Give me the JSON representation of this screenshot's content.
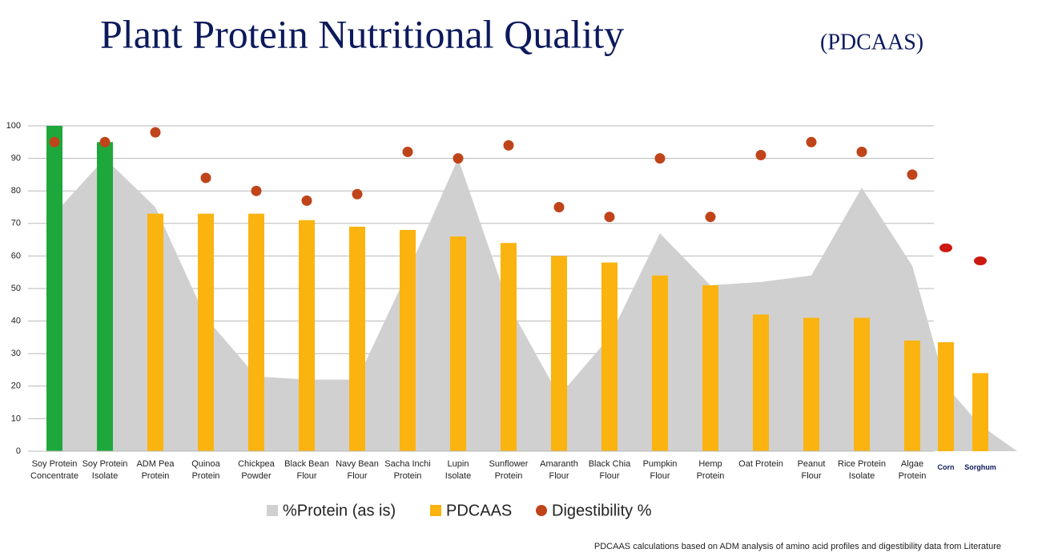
{
  "chart_data": {
    "type": "bar",
    "title": "Plant Protein Nutritional Quality",
    "subtitle": "(PDCAAS)",
    "footnote": "PDCAAS calculations based on ADM analysis of amino acid profiles and digestibility data from Literature",
    "categories": [
      "Soy Protein\nConcentrate",
      "Soy Protein\nIsolate",
      "ADM Pea\nProtein",
      "Quinoa\nProtein",
      "Chickpea\nPowder",
      "Black Bean\nFlour",
      "Navy Bean\nFlour",
      "Sacha Inchi\nProtein",
      "Lupin\nIsolate",
      "Sunflower\nProtein",
      "Amaranth\nFlour",
      "Black Chia\nFlour",
      "Pumpkin\nFlour",
      "Hemp\nProtein",
      "Oat Protein",
      "Peanut\nFlour",
      "Rice Protein\nIsolate",
      "Algae\nProtein",
      "Corn",
      "Sorghum"
    ],
    "series": [
      {
        "name": "%Protein (as is)",
        "kind": "area",
        "color": "#d0d0d0",
        "values": [
          73,
          90,
          75,
          41,
          23,
          22,
          22,
          55,
          90,
          45,
          17,
          35,
          67,
          51,
          52,
          54,
          81,
          57,
          20,
          8
        ]
      },
      {
        "name": "PDCAAS",
        "kind": "bar",
        "color": "#fbb30f",
        "colors": [
          "#1ea83c",
          "#1ea83c",
          "#fbb30f",
          "#fbb30f",
          "#fbb30f",
          "#fbb30f",
          "#fbb30f",
          "#fbb30f",
          "#fbb30f",
          "#fbb30f",
          "#fbb30f",
          "#fbb30f",
          "#fbb30f",
          "#fbb30f",
          "#fbb30f",
          "#fbb30f",
          "#fbb30f",
          "#fbb30f",
          "#fbb30f",
          "#fbb30f"
        ],
        "values": [
          100,
          95,
          73,
          73,
          73,
          71,
          69,
          68,
          66,
          64,
          60,
          58,
          54,
          51,
          42,
          41,
          41,
          34,
          33.5,
          24
        ]
      },
      {
        "name": "Digestibility %",
        "kind": "dot",
        "color": "#c0441a",
        "colors": [
          "#c0441a",
          "#c0441a",
          "#c0441a",
          "#c0441a",
          "#c0441a",
          "#c0441a",
          "#c0441a",
          "#c0441a",
          "#c0441a",
          "#c0441a",
          "#c0441a",
          "#c0441a",
          "#c0441a",
          "#c0441a",
          "#c0441a",
          "#c0441a",
          "#c0441a",
          "#c0441a",
          "#cc1a12",
          "#cc1a12"
        ],
        "values": [
          95,
          95,
          98,
          84,
          80,
          77,
          79,
          92,
          90,
          94,
          75,
          72,
          90,
          72,
          91,
          95,
          92,
          85,
          62.5,
          58.5
        ]
      }
    ],
    "ylim": [
      0,
      100
    ],
    "yticks": [
      0,
      10,
      20,
      30,
      40,
      50,
      60,
      70,
      80,
      90,
      100
    ],
    "grid": true
  }
}
